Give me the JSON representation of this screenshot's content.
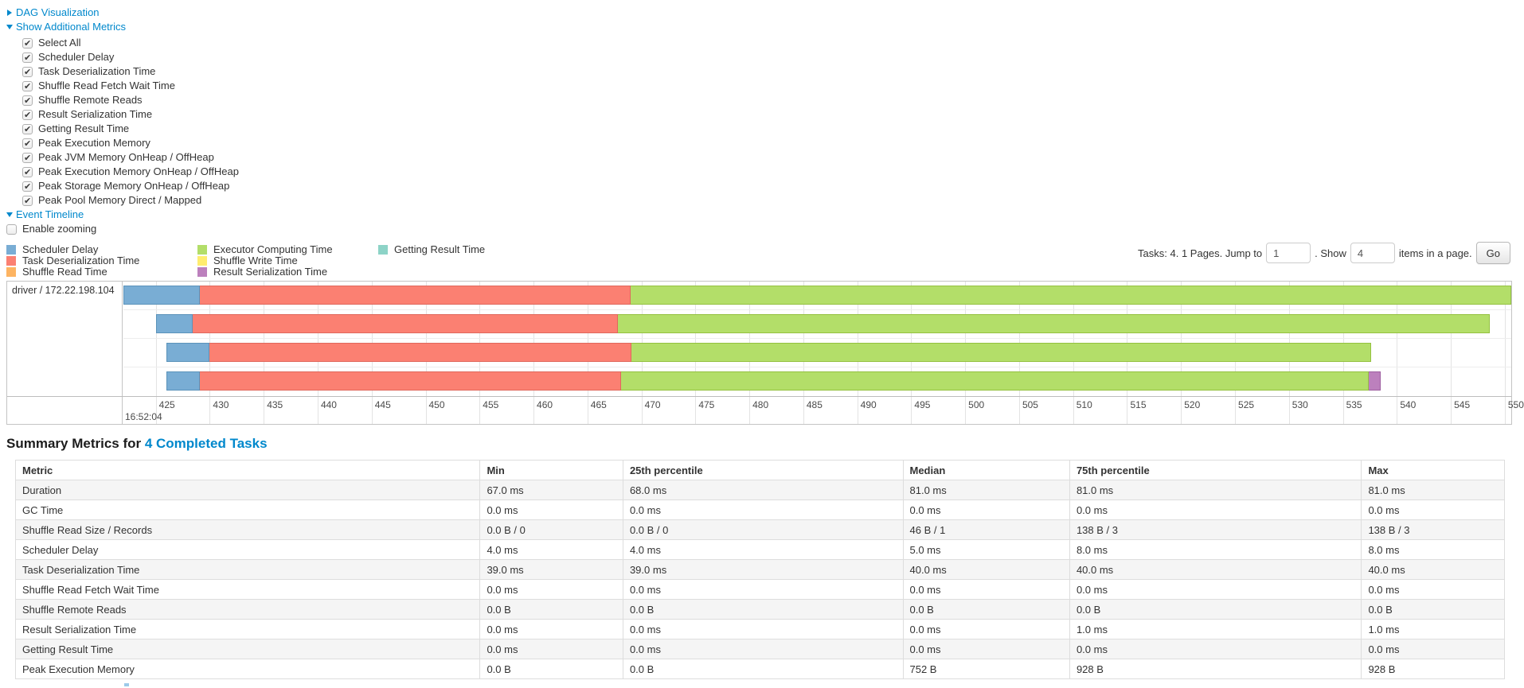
{
  "toggles": {
    "dag": "DAG Visualization",
    "show_metrics": "Show Additional Metrics",
    "event_timeline": "Event Timeline"
  },
  "metric_checkboxes": [
    {
      "label": "Select All",
      "checked": true
    },
    {
      "label": "Scheduler Delay",
      "checked": true
    },
    {
      "label": "Task Deserialization Time",
      "checked": true
    },
    {
      "label": "Shuffle Read Fetch Wait Time",
      "checked": true
    },
    {
      "label": "Shuffle Remote Reads",
      "checked": true
    },
    {
      "label": "Result Serialization Time",
      "checked": true
    },
    {
      "label": "Getting Result Time",
      "checked": true
    },
    {
      "label": "Peak Execution Memory",
      "checked": true
    },
    {
      "label": "Peak JVM Memory OnHeap / OffHeap",
      "checked": true
    },
    {
      "label": "Peak Execution Memory OnHeap / OffHeap",
      "checked": true
    },
    {
      "label": "Peak Storage Memory OnHeap / OffHeap",
      "checked": true
    },
    {
      "label": "Peak Pool Memory Direct / Mapped",
      "checked": true
    }
  ],
  "enable_zooming": {
    "label": "Enable zooming",
    "checked": false
  },
  "colors": {
    "scheduler_delay": {
      "fill": "#79ADD4",
      "border": "#5b93ba",
      "label": "Scheduler Delay"
    },
    "task_deserialization": {
      "fill": "#FB8072",
      "border": "#e0685c",
      "label": "Task Deserialization Time"
    },
    "shuffle_read": {
      "fill": "#FDB462",
      "border": "#d99c43",
      "label": "Shuffle Read Time"
    },
    "executor_computing": {
      "fill": "#B3DE69",
      "border": "#94c140",
      "label": "Executor Computing Time"
    },
    "shuffle_write": {
      "fill": "#FFED6F",
      "border": "#e0cd4f",
      "label": "Shuffle Write Time"
    },
    "result_serialization": {
      "fill": "#BC80BD",
      "border": "#9e5fa0",
      "label": "Result Serialization Time"
    },
    "getting_result": {
      "fill": "#8DD3C7",
      "border": "#69b3a5",
      "label": "Getting Result Time"
    }
  },
  "legend": {
    "columns": [
      [
        "scheduler_delay",
        "task_deserialization",
        "shuffle_read"
      ],
      [
        "executor_computing",
        "shuffle_write",
        "result_serialization"
      ],
      [
        "getting_result"
      ]
    ]
  },
  "pagination": {
    "prefix": "Tasks: 4. 1 Pages. Jump to",
    "jump_value": "1",
    "mid": ". Show",
    "show_value": "4",
    "suffix": "items in a page.",
    "go_label": "Go"
  },
  "timeline": {
    "group_label": "driver / 172.22.198.104",
    "axis": {
      "min": 422.0,
      "max": 550.6,
      "tick_start": 425,
      "tick_step": 5,
      "tick_end": 550,
      "major_label": "16:52:04"
    },
    "bars": [
      {
        "start": 422.0,
        "segments": [
          {
            "key": "scheduler_delay",
            "end": 429.1
          },
          {
            "key": "task_deserialization",
            "end": 469.0
          },
          {
            "key": "executor_computing",
            "end": 550.6
          }
        ]
      },
      {
        "start": 425.0,
        "segments": [
          {
            "key": "scheduler_delay",
            "end": 428.4
          },
          {
            "key": "task_deserialization",
            "end": 467.8
          },
          {
            "key": "executor_computing",
            "end": 548.6
          }
        ]
      },
      {
        "start": 426.0,
        "segments": [
          {
            "key": "scheduler_delay",
            "end": 430.0
          },
          {
            "key": "task_deserialization",
            "end": 469.1
          },
          {
            "key": "executor_computing",
            "end": 537.6
          }
        ]
      },
      {
        "start": 426.0,
        "segments": [
          {
            "key": "scheduler_delay",
            "end": 429.1
          },
          {
            "key": "task_deserialization",
            "end": 468.1
          },
          {
            "key": "executor_computing",
            "end": 537.4
          },
          {
            "key": "result_serialization",
            "end": 538.5
          }
        ]
      }
    ]
  },
  "summary": {
    "heading_prefix": "Summary Metrics for ",
    "heading_link": "4 Completed Tasks",
    "columns": [
      "Metric",
      "Min",
      "25th percentile",
      "Median",
      "75th percentile",
      "Max"
    ],
    "col_widths": [
      "31.2%",
      "9.6%",
      "18.8%",
      "11.2%",
      "19.6%",
      "9.6%"
    ],
    "rows": [
      {
        "metric": "Duration",
        "values": [
          "67.0 ms",
          "68.0 ms",
          "81.0 ms",
          "81.0 ms",
          "81.0 ms"
        ]
      },
      {
        "metric": "GC Time",
        "values": [
          "0.0 ms",
          "0.0 ms",
          "0.0 ms",
          "0.0 ms",
          "0.0 ms"
        ]
      },
      {
        "metric": "Shuffle Read Size / Records",
        "values": [
          "0.0 B / 0",
          "0.0 B / 0",
          "46 B / 1",
          "138 B / 3",
          "138 B / 3"
        ]
      },
      {
        "metric": "Scheduler Delay",
        "values": [
          "4.0 ms",
          "4.0 ms",
          "5.0 ms",
          "8.0 ms",
          "8.0 ms"
        ]
      },
      {
        "metric": "Task Deserialization Time",
        "values": [
          "39.0 ms",
          "39.0 ms",
          "40.0 ms",
          "40.0 ms",
          "40.0 ms"
        ]
      },
      {
        "metric": "Shuffle Read Fetch Wait Time",
        "values": [
          "0.0 ms",
          "0.0 ms",
          "0.0 ms",
          "0.0 ms",
          "0.0 ms"
        ]
      },
      {
        "metric": "Shuffle Remote Reads",
        "values": [
          "0.0 B",
          "0.0 B",
          "0.0 B",
          "0.0 B",
          "0.0 B"
        ]
      },
      {
        "metric": "Result Serialization Time",
        "values": [
          "0.0 ms",
          "0.0 ms",
          "0.0 ms",
          "1.0 ms",
          "1.0 ms"
        ]
      },
      {
        "metric": "Getting Result Time",
        "values": [
          "0.0 ms",
          "0.0 ms",
          "0.0 ms",
          "0.0 ms",
          "0.0 ms"
        ]
      },
      {
        "metric": "Peak Execution Memory",
        "values": [
          "0.0 B",
          "0.0 B",
          "752 B",
          "928 B",
          "928 B"
        ]
      }
    ]
  }
}
